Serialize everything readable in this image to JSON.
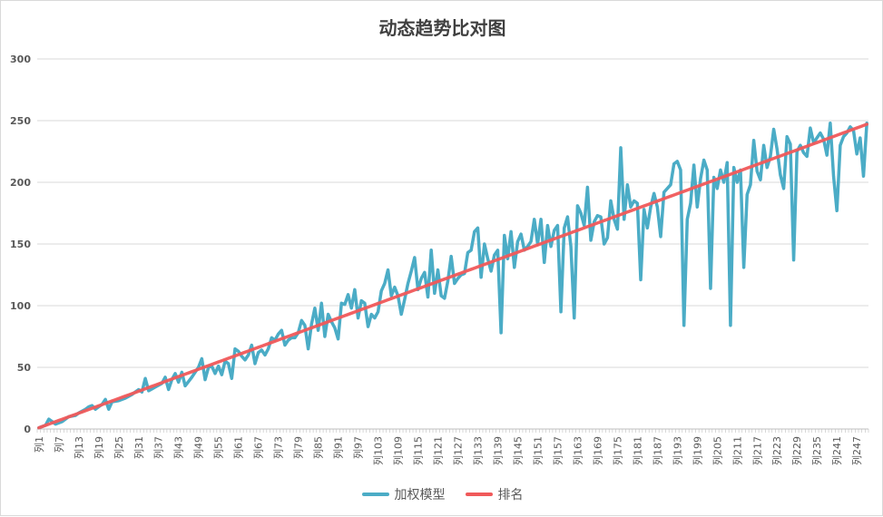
{
  "chart_data": {
    "type": "line",
    "title": "动态趋势比对图",
    "xlabel": "",
    "ylabel": "",
    "ylim": [
      0,
      300
    ],
    "yticks": [
      0,
      50,
      100,
      150,
      200,
      250,
      300
    ],
    "grid": true,
    "legend_position": "bottom",
    "x_label_prefix": "列",
    "x_count": 250,
    "x_tick_labels": [
      "列1",
      "列7",
      "列13",
      "列19",
      "列25",
      "列31",
      "列37",
      "列43",
      "列49",
      "列55",
      "列61",
      "列67",
      "列73",
      "列79",
      "列85",
      "列91",
      "列97",
      "列103",
      "列109",
      "列115",
      "列121",
      "列127",
      "列133",
      "列139",
      "列145",
      "列151",
      "列157",
      "列163",
      "列169",
      "列175",
      "列181",
      "列187",
      "列193",
      "列199",
      "列205",
      "列211",
      "列217",
      "列223",
      "列229",
      "列235",
      "列241",
      "列247"
    ],
    "series": [
      {
        "name": "加权模型",
        "color": "#4bacc6",
        "anchors": [
          [
            1,
            1
          ],
          [
            3,
            3
          ],
          [
            4,
            8
          ],
          [
            5,
            6
          ],
          [
            6,
            4
          ],
          [
            8,
            6
          ],
          [
            10,
            10
          ],
          [
            12,
            11
          ],
          [
            13,
            13
          ],
          [
            15,
            16
          ],
          [
            16,
            18
          ],
          [
            17,
            19
          ],
          [
            18,
            16
          ],
          [
            20,
            20
          ],
          [
            21,
            24
          ],
          [
            22,
            16
          ],
          [
            23,
            22
          ],
          [
            25,
            23
          ],
          [
            27,
            25
          ],
          [
            29,
            28
          ],
          [
            31,
            32
          ],
          [
            32,
            30
          ],
          [
            33,
            41
          ],
          [
            34,
            31
          ],
          [
            36,
            34
          ],
          [
            38,
            37
          ],
          [
            39,
            42
          ],
          [
            40,
            32
          ],
          [
            41,
            40
          ],
          [
            42,
            45
          ],
          [
            43,
            38
          ],
          [
            44,
            46
          ],
          [
            45,
            35
          ],
          [
            47,
            42
          ],
          [
            49,
            50
          ],
          [
            50,
            57
          ],
          [
            51,
            40
          ],
          [
            52,
            50
          ],
          [
            53,
            51
          ],
          [
            54,
            45
          ],
          [
            55,
            51
          ],
          [
            56,
            44
          ],
          [
            57,
            55
          ],
          [
            58,
            53
          ],
          [
            59,
            41
          ],
          [
            60,
            65
          ],
          [
            61,
            63
          ],
          [
            62,
            59
          ],
          [
            63,
            56
          ],
          [
            64,
            60
          ],
          [
            65,
            68
          ],
          [
            66,
            53
          ],
          [
            67,
            62
          ],
          [
            68,
            64
          ],
          [
            69,
            60
          ],
          [
            70,
            65
          ],
          [
            71,
            74
          ],
          [
            72,
            72
          ],
          [
            73,
            77
          ],
          [
            74,
            80
          ],
          [
            75,
            68
          ],
          [
            76,
            72
          ],
          [
            77,
            74
          ],
          [
            78,
            74
          ],
          [
            79,
            78
          ],
          [
            80,
            88
          ],
          [
            81,
            84
          ],
          [
            82,
            65
          ],
          [
            83,
            85
          ],
          [
            84,
            98
          ],
          [
            85,
            80
          ],
          [
            86,
            102
          ],
          [
            87,
            75
          ],
          [
            88,
            93
          ],
          [
            89,
            87
          ],
          [
            90,
            82
          ],
          [
            91,
            73
          ],
          [
            92,
            102
          ],
          [
            93,
            101
          ],
          [
            94,
            109
          ],
          [
            95,
            98
          ],
          [
            96,
            113
          ],
          [
            97,
            90
          ],
          [
            98,
            104
          ],
          [
            99,
            102
          ],
          [
            100,
            83
          ],
          [
            101,
            93
          ],
          [
            102,
            90
          ],
          [
            103,
            95
          ],
          [
            104,
            112
          ],
          [
            105,
            118
          ],
          [
            106,
            129
          ],
          [
            107,
            108
          ],
          [
            108,
            115
          ],
          [
            109,
            108
          ],
          [
            110,
            93
          ],
          [
            111,
            105
          ],
          [
            112,
            118
          ],
          [
            113,
            128
          ],
          [
            114,
            139
          ],
          [
            115,
            113
          ],
          [
            116,
            122
          ],
          [
            117,
            127
          ],
          [
            118,
            107
          ],
          [
            119,
            145
          ],
          [
            120,
            110
          ],
          [
            121,
            129
          ],
          [
            122,
            108
          ],
          [
            123,
            106
          ],
          [
            124,
            120
          ],
          [
            125,
            140
          ],
          [
            126,
            118
          ],
          [
            127,
            122
          ],
          [
            128,
            125
          ],
          [
            129,
            126
          ],
          [
            130,
            143
          ],
          [
            131,
            145
          ],
          [
            132,
            160
          ],
          [
            133,
            163
          ],
          [
            134,
            123
          ],
          [
            135,
            150
          ],
          [
            136,
            138
          ],
          [
            137,
            128
          ],
          [
            138,
            141
          ],
          [
            139,
            145
          ],
          [
            140,
            78
          ],
          [
            141,
            157
          ],
          [
            142,
            138
          ],
          [
            143,
            160
          ],
          [
            144,
            131
          ],
          [
            145,
            152
          ],
          [
            146,
            158
          ],
          [
            147,
            145
          ],
          [
            148,
            148
          ],
          [
            149,
            152
          ],
          [
            150,
            170
          ],
          [
            151,
            150
          ],
          [
            152,
            170
          ],
          [
            153,
            135
          ],
          [
            154,
            165
          ],
          [
            155,
            148
          ],
          [
            156,
            161
          ],
          [
            157,
            165
          ],
          [
            158,
            95
          ],
          [
            159,
            163
          ],
          [
            160,
            172
          ],
          [
            161,
            148
          ],
          [
            162,
            90
          ],
          [
            163,
            181
          ],
          [
            164,
            175
          ],
          [
            165,
            165
          ],
          [
            166,
            196
          ],
          [
            167,
            153
          ],
          [
            168,
            168
          ],
          [
            169,
            173
          ],
          [
            170,
            172
          ],
          [
            171,
            150
          ],
          [
            172,
            155
          ],
          [
            173,
            185
          ],
          [
            174,
            170
          ],
          [
            175,
            162
          ],
          [
            176,
            228
          ],
          [
            177,
            170
          ],
          [
            178,
            198
          ],
          [
            179,
            180
          ],
          [
            180,
            185
          ],
          [
            181,
            183
          ],
          [
            182,
            121
          ],
          [
            183,
            178
          ],
          [
            184,
            163
          ],
          [
            185,
            180
          ],
          [
            186,
            191
          ],
          [
            187,
            180
          ],
          [
            188,
            156
          ],
          [
            189,
            192
          ],
          [
            190,
            195
          ],
          [
            191,
            198
          ],
          [
            192,
            215
          ],
          [
            193,
            217
          ],
          [
            194,
            210
          ],
          [
            195,
            84
          ],
          [
            196,
            170
          ],
          [
            197,
            183
          ],
          [
            198,
            214
          ],
          [
            199,
            180
          ],
          [
            200,
            203
          ],
          [
            201,
            218
          ],
          [
            202,
            210
          ],
          [
            203,
            114
          ],
          [
            204,
            204
          ],
          [
            205,
            195
          ],
          [
            206,
            210
          ],
          [
            207,
            200
          ],
          [
            208,
            216
          ],
          [
            209,
            84
          ],
          [
            210,
            212
          ],
          [
            211,
            200
          ],
          [
            212,
            210
          ],
          [
            213,
            131
          ],
          [
            214,
            190
          ],
          [
            215,
            198
          ],
          [
            216,
            234
          ],
          [
            217,
            209
          ],
          [
            218,
            202
          ],
          [
            219,
            230
          ],
          [
            220,
            212
          ],
          [
            221,
            221
          ],
          [
            222,
            243
          ],
          [
            223,
            227
          ],
          [
            224,
            206
          ],
          [
            225,
            195
          ],
          [
            226,
            237
          ],
          [
            227,
            231
          ],
          [
            228,
            137
          ],
          [
            229,
            225
          ],
          [
            230,
            230
          ],
          [
            231,
            224
          ],
          [
            232,
            221
          ],
          [
            233,
            244
          ],
          [
            234,
            232
          ],
          [
            235,
            236
          ],
          [
            236,
            240
          ],
          [
            237,
            235
          ],
          [
            238,
            222
          ],
          [
            239,
            248
          ],
          [
            240,
            205
          ],
          [
            241,
            177
          ],
          [
            242,
            230
          ],
          [
            243,
            237
          ],
          [
            244,
            240
          ],
          [
            245,
            245
          ],
          [
            246,
            242
          ],
          [
            247,
            223
          ],
          [
            248,
            236
          ],
          [
            249,
            205
          ],
          [
            250,
            248
          ],
          [
            251,
            250
          ],
          [
            252,
            226
          ],
          [
            253,
            246
          ]
        ]
      },
      {
        "name": "排名",
        "color": "#f0595a",
        "start": [
          1,
          1
        ],
        "end": [
          253,
          250
        ]
      }
    ]
  }
}
